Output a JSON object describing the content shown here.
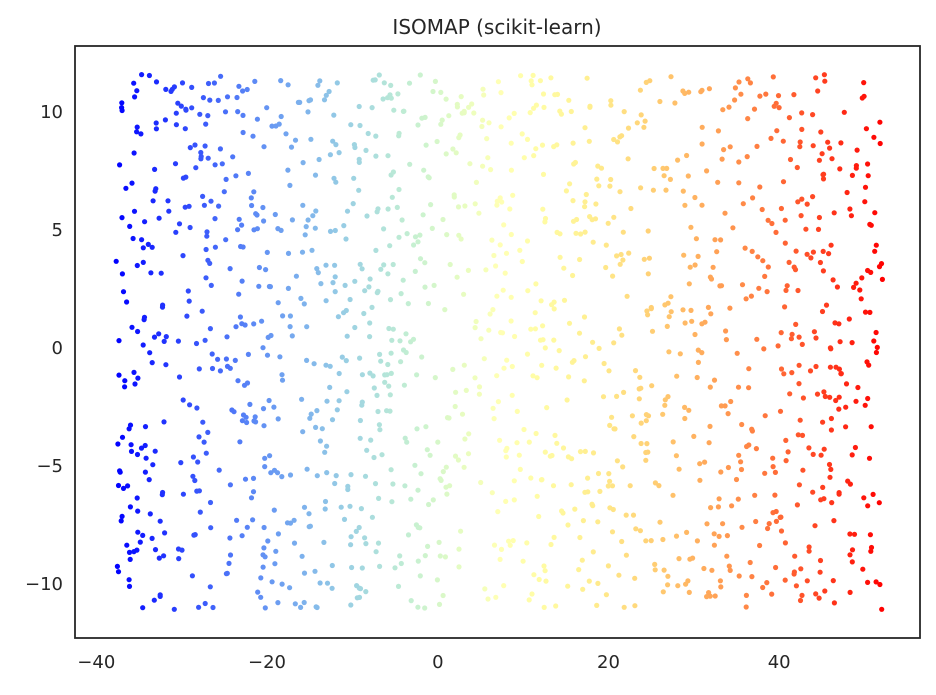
{
  "chart_data": {
    "type": "scatter",
    "title": "ISOMAP (scikit-learn)",
    "xlabel": "",
    "ylabel": "",
    "xlim": [
      -42.5,
      56.5
    ],
    "ylim": [
      -12.3,
      12.8
    ],
    "xticks": [
      -40,
      -20,
      0,
      20,
      40
    ],
    "yticks": [
      -10,
      -5,
      0,
      5,
      10
    ],
    "xtick_labels": [
      "−40",
      "−20",
      "0",
      "20",
      "40"
    ],
    "ytick_labels": [
      "−10",
      "−5",
      "0",
      "5",
      "10"
    ],
    "grid": false,
    "legend": "none",
    "colormap": "rainbow (color encodes x position)",
    "point_count": 1500,
    "x_range_of_points": [
      -37.8,
      52.2
    ],
    "y_range_of_points": [
      -11.1,
      11.6
    ],
    "frame_color": "#262626",
    "background_color": "#ffffff"
  }
}
